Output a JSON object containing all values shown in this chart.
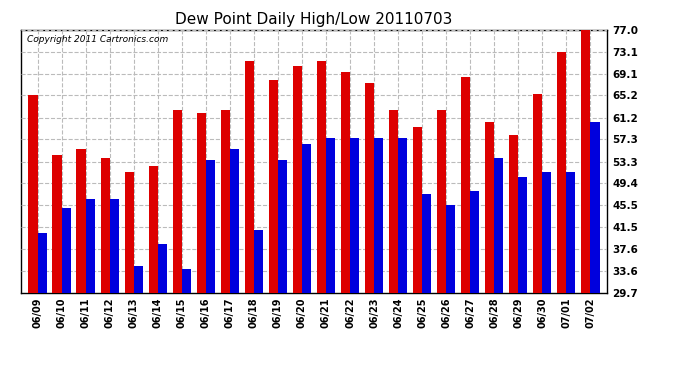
{
  "title": "Dew Point Daily High/Low 20110703",
  "copyright": "Copyright 2011 Cartronics.com",
  "dates": [
    "06/09",
    "06/10",
    "06/11",
    "06/12",
    "06/13",
    "06/14",
    "06/15",
    "06/16",
    "06/17",
    "06/18",
    "06/19",
    "06/20",
    "06/21",
    "06/22",
    "06/23",
    "06/24",
    "06/25",
    "06/26",
    "06/27",
    "06/28",
    "06/29",
    "06/30",
    "07/01",
    "07/02"
  ],
  "highs": [
    65.2,
    54.5,
    55.5,
    54.0,
    51.5,
    52.5,
    62.5,
    62.0,
    62.5,
    71.5,
    68.0,
    70.5,
    71.5,
    69.5,
    67.5,
    62.5,
    59.5,
    62.5,
    68.5,
    60.5,
    58.0,
    65.5,
    73.0,
    77.0
  ],
  "lows": [
    40.5,
    45.0,
    46.5,
    46.5,
    34.5,
    38.5,
    34.0,
    53.5,
    55.5,
    41.0,
    53.5,
    56.5,
    57.5,
    57.5,
    57.5,
    57.5,
    47.5,
    45.5,
    48.0,
    54.0,
    50.5,
    51.5,
    51.5,
    60.5
  ],
  "high_color": "#dd0000",
  "low_color": "#0000dd",
  "background_color": "#ffffff",
  "plot_bg_color": "#ffffff",
  "grid_color": "#bbbbbb",
  "yticks": [
    29.7,
    33.6,
    37.6,
    41.5,
    45.5,
    49.4,
    53.3,
    57.3,
    61.2,
    65.2,
    69.1,
    73.1,
    77.0
  ],
  "ymin": 29.7,
  "ymax": 77.0,
  "bar_width": 0.38,
  "figwidth": 6.9,
  "figheight": 3.75,
  "dpi": 100
}
